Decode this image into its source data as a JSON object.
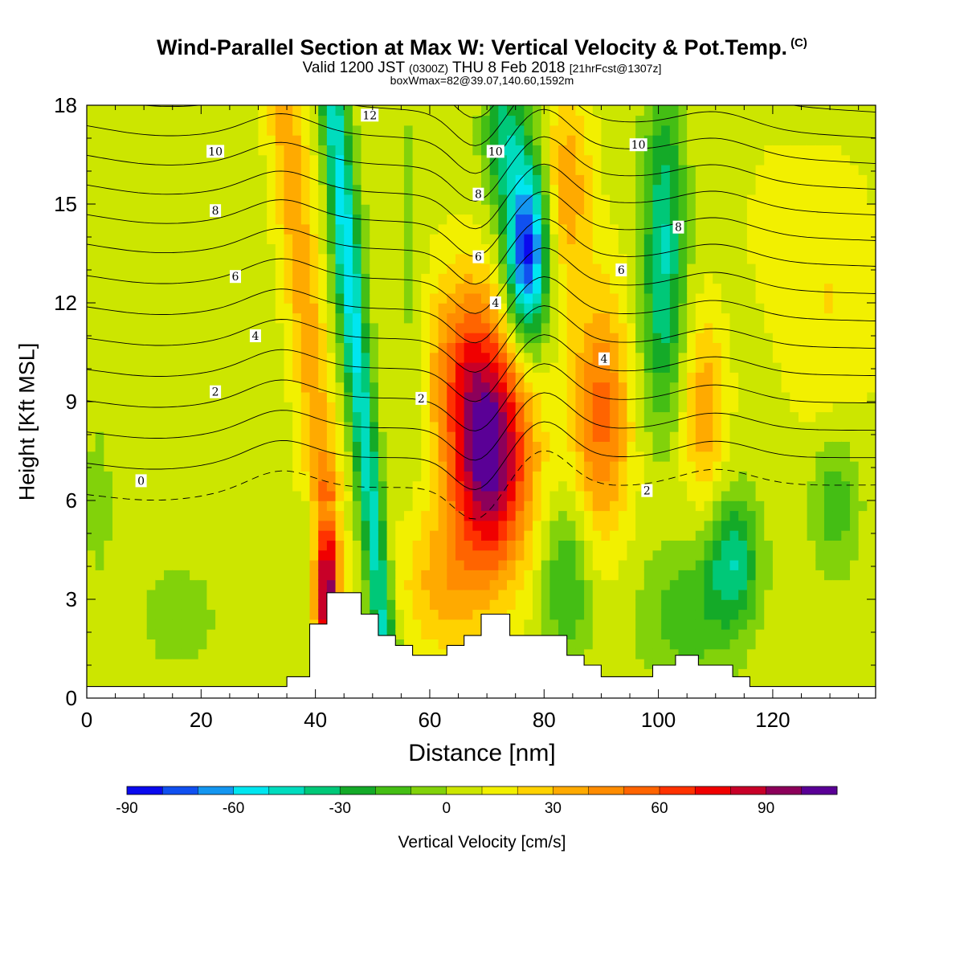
{
  "header": {
    "title": "Wind-Parallel Section at Max W: Vertical Velocity & Pot.Temp.",
    "copyright": "(C)",
    "valid_prefix": "Valid 1200 JST",
    "valid_utc": "(0300Z)",
    "valid_date": "THU 8 Feb 2018",
    "forecast": "[21hrFcst@1307z]",
    "box_info": "boxWmax=82@39.07,140.60,1592m"
  },
  "chart_data": {
    "type": "heatmap",
    "xlabel": "Distance [nm]",
    "ylabel": "Height [Kft MSL]",
    "xlim": [
      0,
      138
    ],
    "ylim": [
      0,
      18
    ],
    "x_ticks": [
      "0",
      "20",
      "40",
      "60",
      "80",
      "100",
      "120"
    ],
    "y_ticks": [
      "0",
      "3",
      "6",
      "9",
      "12",
      "15",
      "18"
    ],
    "colorbar": {
      "label": "Vertical Velocity [cm/s]",
      "tick_labels": [
        "-90",
        "-60",
        "-30",
        "0",
        "30",
        "60",
        "90"
      ],
      "levels": [
        -90,
        -80,
        -70,
        -60,
        -50,
        -40,
        -30,
        -20,
        -10,
        0,
        10,
        20,
        30,
        40,
        50,
        60,
        70,
        80,
        90,
        100,
        110
      ],
      "colors": [
        "#0a0aee",
        "#1050f0",
        "#1496f0",
        "#00e6f0",
        "#00dcbe",
        "#00c878",
        "#14aa28",
        "#44be14",
        "#82d20a",
        "#cce600",
        "#f2f000",
        "#ffd200",
        "#ffaa00",
        "#ff8c00",
        "#ff6400",
        "#ff3200",
        "#f00000",
        "#c80028",
        "#8c005a",
        "#5a0096"
      ]
    },
    "vertical_velocity_features": [
      {
        "type": "updraft",
        "x": 70.5,
        "y": 7.4,
        "peak": 105
      },
      {
        "type": "downdraft",
        "x": 77,
        "y": 13.6,
        "peak": -85
      },
      {
        "type": "updraft",
        "x": 42,
        "y": 3.2,
        "peak": 90
      },
      {
        "type": "downdraft",
        "x": 46,
        "y": 12.5,
        "peak": -55
      },
      {
        "type": "updraft",
        "x": 90,
        "y": 8.6,
        "peak": 50
      },
      {
        "type": "updraft",
        "x": 108,
        "y": 8.8,
        "peak": 40
      },
      {
        "type": "downdraft",
        "x": 101,
        "y": 14.2,
        "peak": -40
      },
      {
        "type": "downdraft",
        "x": 113,
        "y": 4.2,
        "peak": -40
      }
    ],
    "terrain": {
      "x": [
        0,
        35,
        35,
        39,
        39,
        42,
        42,
        48,
        48,
        51,
        51,
        54,
        54,
        57,
        57,
        63,
        63,
        66,
        66,
        69,
        69,
        74,
        74,
        84,
        84,
        87,
        87,
        90,
        90,
        93,
        93,
        99,
        99,
        103,
        103,
        107,
        107,
        113,
        113,
        116,
        116,
        122,
        122,
        138
      ],
      "y": [
        0.35,
        0.35,
        0.65,
        0.65,
        2.25,
        2.25,
        3.2,
        3.2,
        2.55,
        2.55,
        1.9,
        1.9,
        1.6,
        1.6,
        1.3,
        1.3,
        1.6,
        1.6,
        1.9,
        1.9,
        2.55,
        2.55,
        1.9,
        1.9,
        1.3,
        1.3,
        1.0,
        1.0,
        0.65,
        0.65,
        0.65,
        0.65,
        1.0,
        1.0,
        1.3,
        1.3,
        1.0,
        1.0,
        0.65,
        0.65,
        0.35,
        0.35,
        0.35,
        0.35
      ]
    },
    "pot_temp_contours": {
      "levels": [
        -1,
        0,
        1,
        2,
        3,
        4,
        5,
        6,
        7,
        8,
        9,
        10,
        11,
        12,
        13
      ],
      "labels": [
        {
          "text": "0",
          "x": 9.5,
          "y": 6.6
        },
        {
          "text": "2",
          "x": 22.5,
          "y": 9.3
        },
        {
          "text": "2",
          "x": 58.5,
          "y": 9.1
        },
        {
          "text": "2",
          "x": 98,
          "y": 6.3
        },
        {
          "text": "4",
          "x": 29.5,
          "y": 11.0
        },
        {
          "text": "4",
          "x": 71.5,
          "y": 12.0
        },
        {
          "text": "4",
          "x": 90.5,
          "y": 10.3
        },
        {
          "text": "6",
          "x": 26,
          "y": 12.8
        },
        {
          "text": "6",
          "x": 68.5,
          "y": 13.4
        },
        {
          "text": "6",
          "x": 93.5,
          "y": 13.0
        },
        {
          "text": "8",
          "x": 22.5,
          "y": 14.8
        },
        {
          "text": "8",
          "x": 68.5,
          "y": 15.3
        },
        {
          "text": "8",
          "x": 103.5,
          "y": 14.3
        },
        {
          "text": "10",
          "x": 22.5,
          "y": 16.6
        },
        {
          "text": "10",
          "x": 71.5,
          "y": 16.6
        },
        {
          "text": "10",
          "x": 96.5,
          "y": 16.8
        },
        {
          "text": "12",
          "x": 49.5,
          "y": 17.7
        }
      ]
    }
  }
}
